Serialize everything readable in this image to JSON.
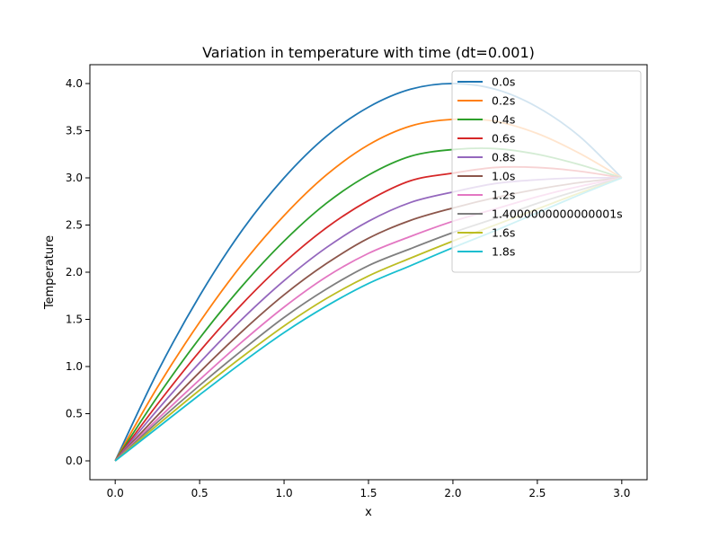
{
  "chart_data": {
    "type": "line",
    "title": "Variation in temperature with time (dt=0.001)",
    "xlabel": "x",
    "ylabel": "Temperature",
    "xlim": [
      -0.15,
      3.15
    ],
    "ylim": [
      -0.2,
      4.2
    ],
    "xticks": [
      {
        "value": 0.0,
        "label": "0.0"
      },
      {
        "value": 0.5,
        "label": "0.5"
      },
      {
        "value": 1.0,
        "label": "1.0"
      },
      {
        "value": 1.5,
        "label": "1.5"
      },
      {
        "value": 2.0,
        "label": "2.0"
      },
      {
        "value": 2.5,
        "label": "2.5"
      },
      {
        "value": 3.0,
        "label": "3.0"
      }
    ],
    "yticks": [
      {
        "value": 0.0,
        "label": "0.0"
      },
      {
        "value": 0.5,
        "label": "0.5"
      },
      {
        "value": 1.0,
        "label": "1.0"
      },
      {
        "value": 1.5,
        "label": "1.5"
      },
      {
        "value": 2.0,
        "label": "2.0"
      },
      {
        "value": 2.5,
        "label": "2.5"
      },
      {
        "value": 3.0,
        "label": "3.0"
      },
      {
        "value": 3.5,
        "label": "3.5"
      },
      {
        "value": 4.0,
        "label": "4.0"
      }
    ],
    "grid": false,
    "legend_position": "top-right",
    "x": [
      0.0,
      0.25,
      0.5,
      0.75,
      1.0,
      1.25,
      1.5,
      1.75,
      2.0,
      2.25,
      2.5,
      2.75,
      3.0
    ],
    "series": [
      {
        "name": "0.0s",
        "color": "#1f77b4",
        "values": [
          0.0,
          0.94,
          1.75,
          2.44,
          3.0,
          3.44,
          3.75,
          3.94,
          4.0,
          3.94,
          3.75,
          3.44,
          3.0
        ]
      },
      {
        "name": "0.2s",
        "color": "#ff7f0e",
        "values": [
          0.0,
          0.78,
          1.47,
          2.08,
          2.6,
          3.03,
          3.35,
          3.55,
          3.62,
          3.6,
          3.47,
          3.26,
          3.0
        ]
      },
      {
        "name": "0.4s",
        "color": "#2ca02c",
        "values": [
          0.0,
          0.68,
          1.3,
          1.85,
          2.33,
          2.73,
          3.03,
          3.23,
          3.3,
          3.31,
          3.25,
          3.14,
          3.0
        ]
      },
      {
        "name": "0.6s",
        "color": "#d62728",
        "values": [
          0.0,
          0.6,
          1.16,
          1.66,
          2.1,
          2.47,
          2.76,
          2.97,
          3.05,
          3.11,
          3.11,
          3.07,
          3.0
        ]
      },
      {
        "name": "0.8s",
        "color": "#9467bd",
        "values": [
          0.0,
          0.54,
          1.04,
          1.5,
          1.91,
          2.26,
          2.54,
          2.74,
          2.85,
          2.94,
          2.98,
          3.0,
          3.0
        ]
      },
      {
        "name": "1.0s",
        "color": "#8c564b",
        "values": [
          0.0,
          0.48,
          0.94,
          1.37,
          1.76,
          2.09,
          2.36,
          2.55,
          2.68,
          2.79,
          2.88,
          2.95,
          3.0
        ]
      },
      {
        "name": "1.2s",
        "color": "#e377c2",
        "values": [
          0.0,
          0.44,
          0.86,
          1.26,
          1.63,
          1.95,
          2.2,
          2.38,
          2.54,
          2.67,
          2.8,
          2.91,
          3.0
        ]
      },
      {
        "name": "1.4000000000000001s",
        "color": "#7f7f7f",
        "values": [
          0.0,
          0.41,
          0.8,
          1.17,
          1.52,
          1.82,
          2.07,
          2.25,
          2.42,
          2.57,
          2.73,
          2.87,
          3.0
        ]
      },
      {
        "name": "1.6s",
        "color": "#bcbd22",
        "values": [
          0.0,
          0.38,
          0.75,
          1.1,
          1.43,
          1.72,
          1.96,
          2.15,
          2.33,
          2.5,
          2.67,
          2.84,
          3.0
        ]
      },
      {
        "name": "1.8s",
        "color": "#17becf",
        "values": [
          0.0,
          0.35,
          0.7,
          1.04,
          1.36,
          1.64,
          1.88,
          2.07,
          2.26,
          2.44,
          2.63,
          2.82,
          3.0
        ]
      }
    ]
  }
}
